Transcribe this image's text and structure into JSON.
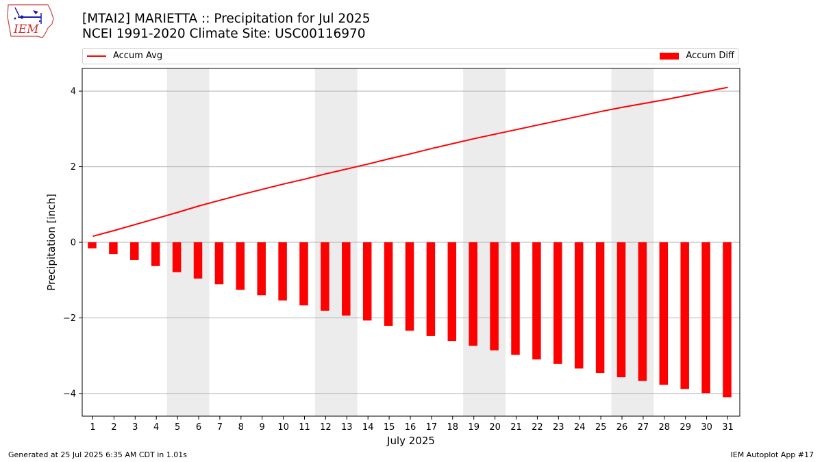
{
  "header": {
    "logo_text": "IEM",
    "title_line1": "[MTAI2] MARIETTA :: Precipitation for Jul 2025",
    "title_line2": "NCEI 1991-2020 Climate Site: USC00116970"
  },
  "legend": {
    "line_label": "Accum Avg",
    "bar_label": "Accum Diff"
  },
  "footer": {
    "left": "Generated at 25 Jul 2025 6:35 AM CDT in 1.01s",
    "right": "IEM Autoplot App #17"
  },
  "colors": {
    "series": "#ff0000",
    "weekend_shade": "#ececec",
    "grid": "#b0b0b0"
  },
  "chart_data": {
    "type": "bar",
    "xlabel": "July 2025",
    "ylabel": "Precipitation [inch]",
    "ylim": [
      -4.6,
      4.6
    ],
    "yticks": [
      -4,
      -2,
      0,
      2,
      4
    ],
    "ytick_labels": [
      "−4",
      "−2",
      "0",
      "2",
      "4"
    ],
    "grid": true,
    "legend_placement": "top",
    "categories": [
      "1",
      "2",
      "3",
      "4",
      "5",
      "6",
      "7",
      "8",
      "9",
      "10",
      "11",
      "12",
      "13",
      "14",
      "15",
      "16",
      "17",
      "18",
      "19",
      "20",
      "21",
      "22",
      "23",
      "24",
      "25",
      "26",
      "27",
      "28",
      "29",
      "30",
      "31"
    ],
    "shaded_days": [
      [
        5,
        6
      ],
      [
        12,
        13
      ],
      [
        19,
        20
      ],
      [
        26,
        27
      ]
    ],
    "series": [
      {
        "name": "Accum Diff",
        "type": "bar",
        "values": [
          -0.16,
          -0.31,
          -0.47,
          -0.63,
          -0.79,
          -0.96,
          -1.11,
          -1.26,
          -1.4,
          -1.54,
          -1.67,
          -1.81,
          -1.94,
          -2.07,
          -2.21,
          -2.34,
          -2.48,
          -2.61,
          -2.74,
          -2.86,
          -2.98,
          -3.1,
          -3.22,
          -3.34,
          -3.46,
          -3.57,
          -3.67,
          -3.77,
          -3.88,
          -3.99,
          -4.1
        ]
      },
      {
        "name": "Accum Avg",
        "type": "line",
        "values": [
          0.16,
          0.31,
          0.47,
          0.63,
          0.79,
          0.96,
          1.11,
          1.26,
          1.4,
          1.54,
          1.67,
          1.81,
          1.94,
          2.07,
          2.21,
          2.34,
          2.48,
          2.61,
          2.74,
          2.86,
          2.98,
          3.1,
          3.22,
          3.34,
          3.46,
          3.57,
          3.67,
          3.77,
          3.88,
          3.99,
          4.1
        ]
      }
    ]
  }
}
